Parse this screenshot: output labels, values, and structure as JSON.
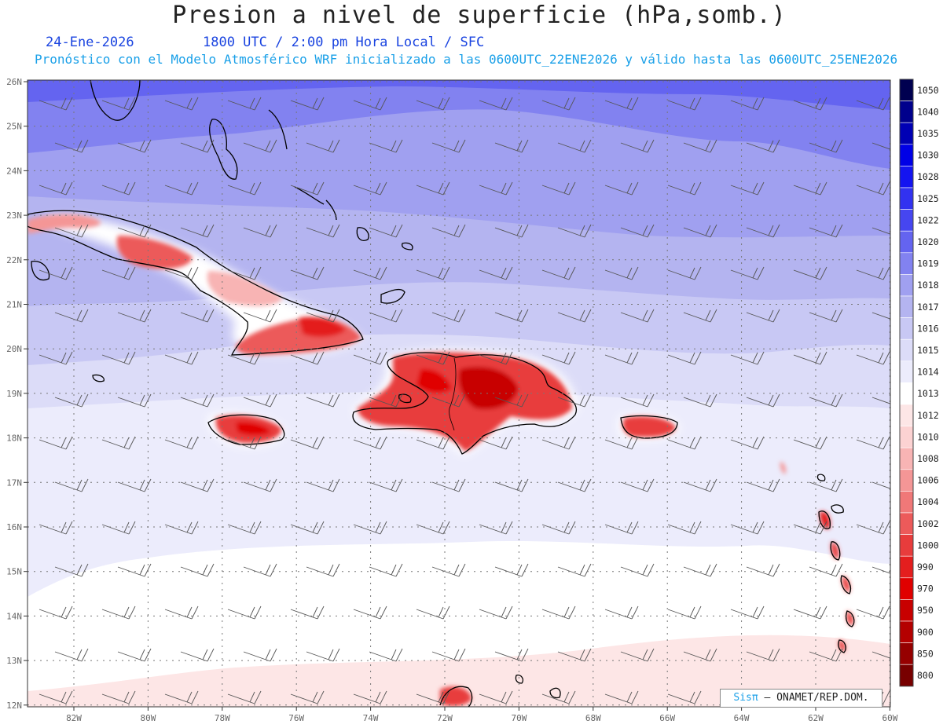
{
  "header": {
    "title": "Presion a nivel de superficie (hPa,somb.)",
    "date": "24-Ene-2026",
    "time_label": "1800 UTC / 2:00 pm Hora Local / SFC",
    "forecast_info": "Pronóstico con el Modelo Atmosférico WRF inicializado a las 0600UTC_22ENE2026 y válido hasta las  0600UTC_25ENE2026"
  },
  "map": {
    "lat_labels": [
      "26N",
      "25N",
      "24N",
      "23N",
      "22N",
      "21N",
      "20N",
      "19N",
      "18N",
      "17N",
      "16N",
      "15N",
      "14N",
      "13N",
      "12N"
    ],
    "lon_labels": [
      "82W",
      "80W",
      "78W",
      "76W",
      "74W",
      "72W",
      "70W",
      "68W",
      "66W",
      "64W",
      "62W",
      "60W"
    ]
  },
  "legend": {
    "levels": [
      {
        "label": "1050",
        "color": "#000050"
      },
      {
        "label": "1040",
        "color": "#00008c"
      },
      {
        "label": "1035",
        "color": "#0000b4"
      },
      {
        "label": "1030",
        "color": "#0000e6"
      },
      {
        "label": "1028",
        "color": "#1414f0"
      },
      {
        "label": "1025",
        "color": "#3232f0"
      },
      {
        "label": "1022",
        "color": "#4646f0"
      },
      {
        "label": "1020",
        "color": "#6464f0"
      },
      {
        "label": "1019",
        "color": "#8282f0"
      },
      {
        "label": "1018",
        "color": "#a0a0f0"
      },
      {
        "label": "1017",
        "color": "#b4b4f0"
      },
      {
        "label": "1016",
        "color": "#c8c8f4"
      },
      {
        "label": "1015",
        "color": "#dcdcf8"
      },
      {
        "label": "1014",
        "color": "#ececfc"
      },
      {
        "label": "1013",
        "color": "#ffffff"
      },
      {
        "label": "1012",
        "color": "#fde6e6"
      },
      {
        "label": "1010",
        "color": "#fcd2d2"
      },
      {
        "label": "1008",
        "color": "#f8b4b4"
      },
      {
        "label": "1006",
        "color": "#f49696"
      },
      {
        "label": "1004",
        "color": "#f07878"
      },
      {
        "label": "1002",
        "color": "#ec5a5a"
      },
      {
        "label": "1000",
        "color": "#e83c3c"
      },
      {
        "label": "990",
        "color": "#e41e1e"
      },
      {
        "label": "970",
        "color": "#e00000"
      },
      {
        "label": "950",
        "color": "#c80000"
      },
      {
        "label": "900",
        "color": "#b40000"
      },
      {
        "label": "850",
        "color": "#960000"
      },
      {
        "label": "800",
        "color": "#780000"
      }
    ]
  },
  "credit": {
    "brand": "Sisπ",
    "org": " – ONAMET/REP.DOM."
  }
}
